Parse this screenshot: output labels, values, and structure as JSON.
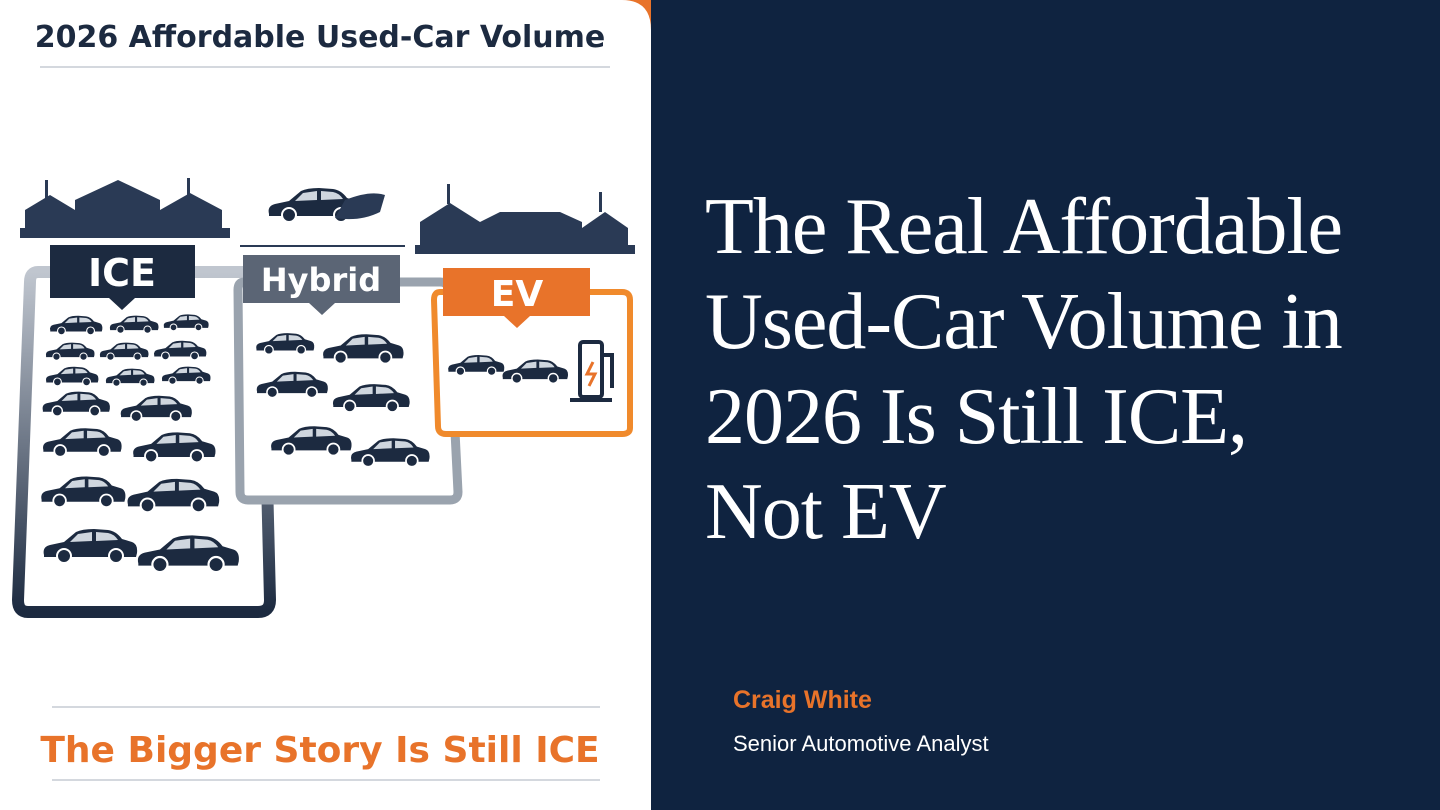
{
  "illustration": {
    "title": "2026 Affordable Used-Car Volume",
    "labels": [
      "ICE",
      "Hybrid",
      "EV"
    ],
    "footer": "The Bigger Story Is Still ICE"
  },
  "headline": "The Real Affordable Used-Car Volume in 2026 Is Still ICE, Not EV",
  "author": {
    "name": "Craig White",
    "role": "Senior Automotive Analyst"
  }
}
